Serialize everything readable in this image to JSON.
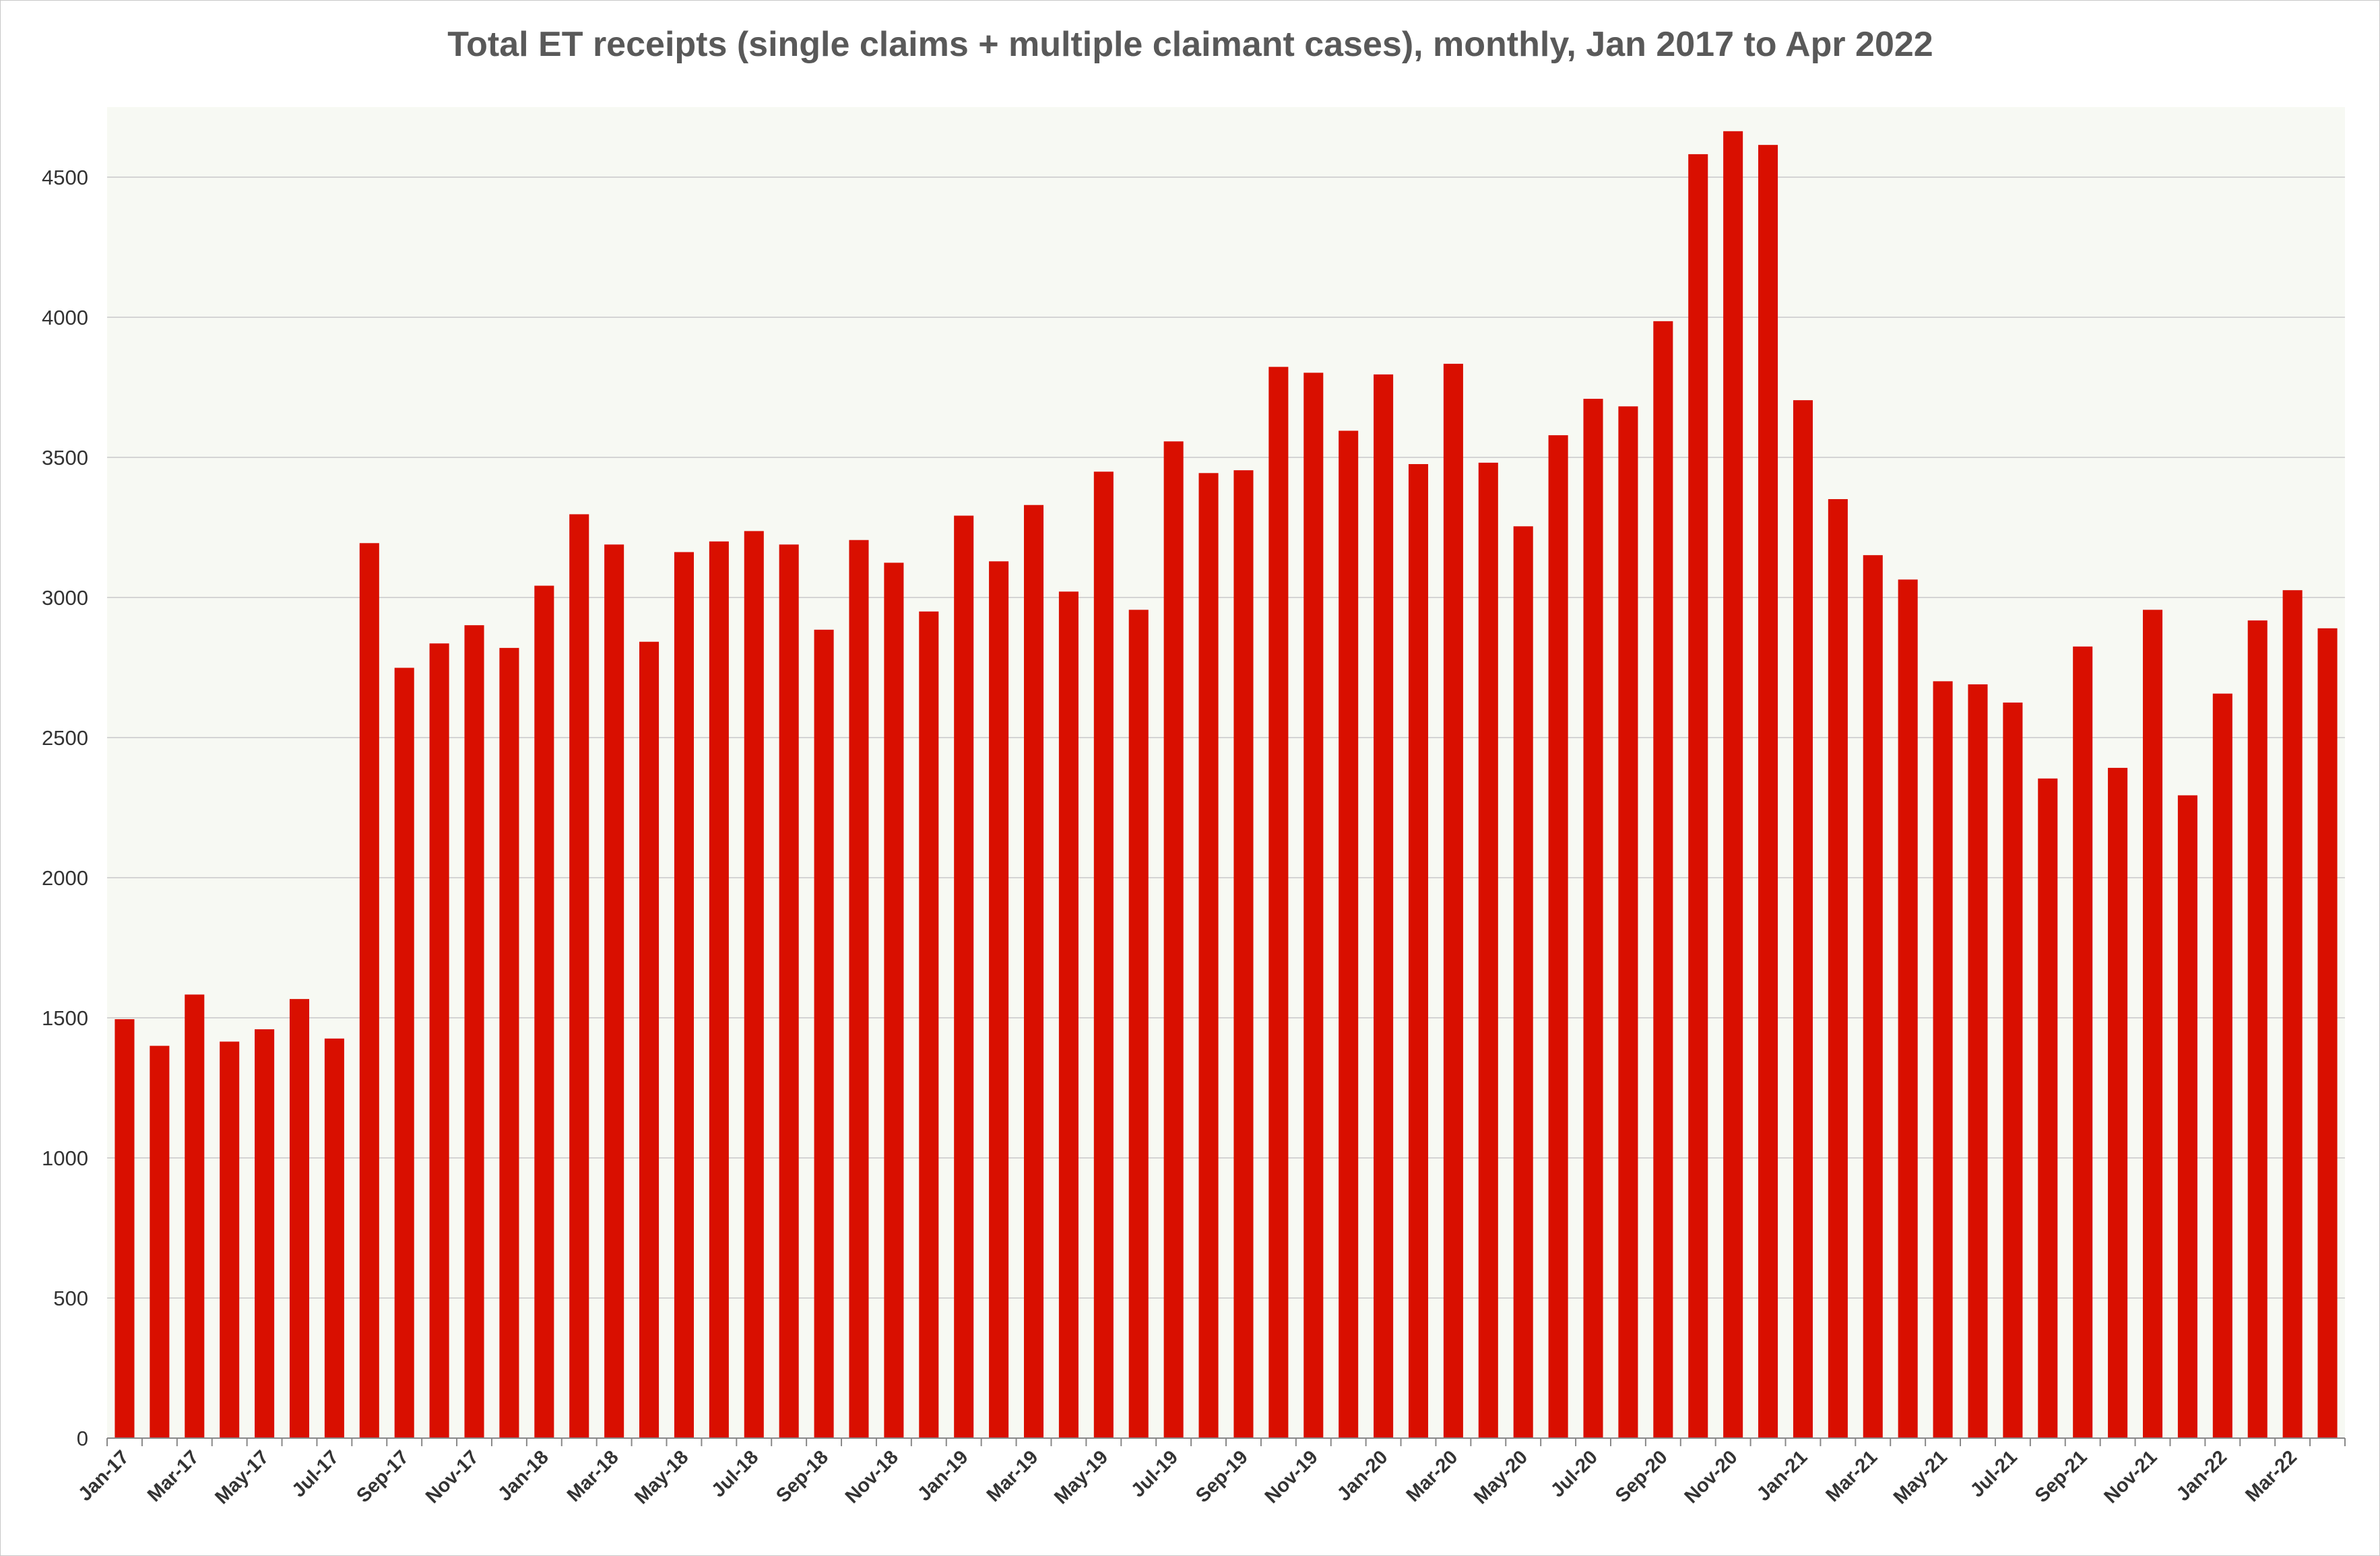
{
  "chart_data": {
    "type": "bar",
    "title": "Total ET receipts (single claims + multiple claimant cases), monthly, Jan 2017 to Apr 2022",
    "xlabel": "",
    "ylabel": "",
    "ylim": [
      0,
      4750
    ],
    "yticks": [
      0,
      500,
      1000,
      1500,
      2000,
      2500,
      3000,
      3500,
      4000,
      4500
    ],
    "grid": true,
    "legend": "none",
    "bar_color": "#d90f00",
    "plot_bg": "#f7f9f3",
    "categories": [
      "Jan-17",
      "Feb-17",
      "Mar-17",
      "Apr-17",
      "May-17",
      "Jun-17",
      "Jul-17",
      "Aug-17",
      "Sep-17",
      "Oct-17",
      "Nov-17",
      "Dec-17",
      "Jan-18",
      "Feb-18",
      "Mar-18",
      "Apr-18",
      "May-18",
      "Jun-18",
      "Jul-18",
      "Aug-18",
      "Sep-18",
      "Oct-18",
      "Nov-18",
      "Dec-18",
      "Jan-19",
      "Feb-19",
      "Mar-19",
      "Apr-19",
      "May-19",
      "Jun-19",
      "Jul-19",
      "Aug-19",
      "Sep-19",
      "Oct-19",
      "Nov-19",
      "Dec-19",
      "Jan-20",
      "Feb-20",
      "Mar-20",
      "Apr-20",
      "May-20",
      "Jun-20",
      "Jul-20",
      "Aug-20",
      "Sep-20",
      "Oct-20",
      "Nov-20",
      "Dec-20",
      "Jan-21",
      "Feb-21",
      "Mar-21",
      "Apr-21",
      "May-21",
      "Jun-21",
      "Jul-21",
      "Aug-21",
      "Sep-21",
      "Oct-21",
      "Nov-21",
      "Dec-21",
      "Jan-22",
      "Feb-22",
      "Mar-22",
      "Apr-22"
    ],
    "values": [
      1495,
      1400,
      1583,
      1415,
      1459,
      1567,
      1426,
      3194,
      2749,
      2836,
      2901,
      2820,
      3042,
      3297,
      3189,
      2842,
      3162,
      3200,
      3237,
      3189,
      2885,
      3205,
      3124,
      2950,
      3292,
      3129,
      3330,
      3021,
      3449,
      2956,
      3557,
      3444,
      3454,
      3823,
      3802,
      3595,
      3796,
      3476,
      3834,
      3481,
      3254,
      3579,
      3709,
      3682,
      3986,
      4582,
      4664,
      4615,
      3704,
      3351,
      3151,
      3064,
      2701,
      2690,
      2625,
      2354,
      2825,
      2392,
      2956,
      2294,
      2657,
      2918,
      3026,
      2890
    ],
    "x_tick_labels": [
      "Jan-17",
      "Mar-17",
      "May-17",
      "Jul-17",
      "Sep-17",
      "Nov-17",
      "Jan-18",
      "Mar-18",
      "May-18",
      "Jul-18",
      "Sep-18",
      "Nov-18",
      "Jan-19",
      "Mar-19",
      "May-19",
      "Jul-19",
      "Sep-19",
      "Nov-19",
      "Jan-20",
      "Mar-20",
      "May-20",
      "Jul-20",
      "Sep-20",
      "Nov-20",
      "Jan-21",
      "Mar-21",
      "May-21",
      "Jul-21",
      "Sep-21",
      "Nov-21",
      "Jan-22",
      "Mar-22"
    ]
  }
}
